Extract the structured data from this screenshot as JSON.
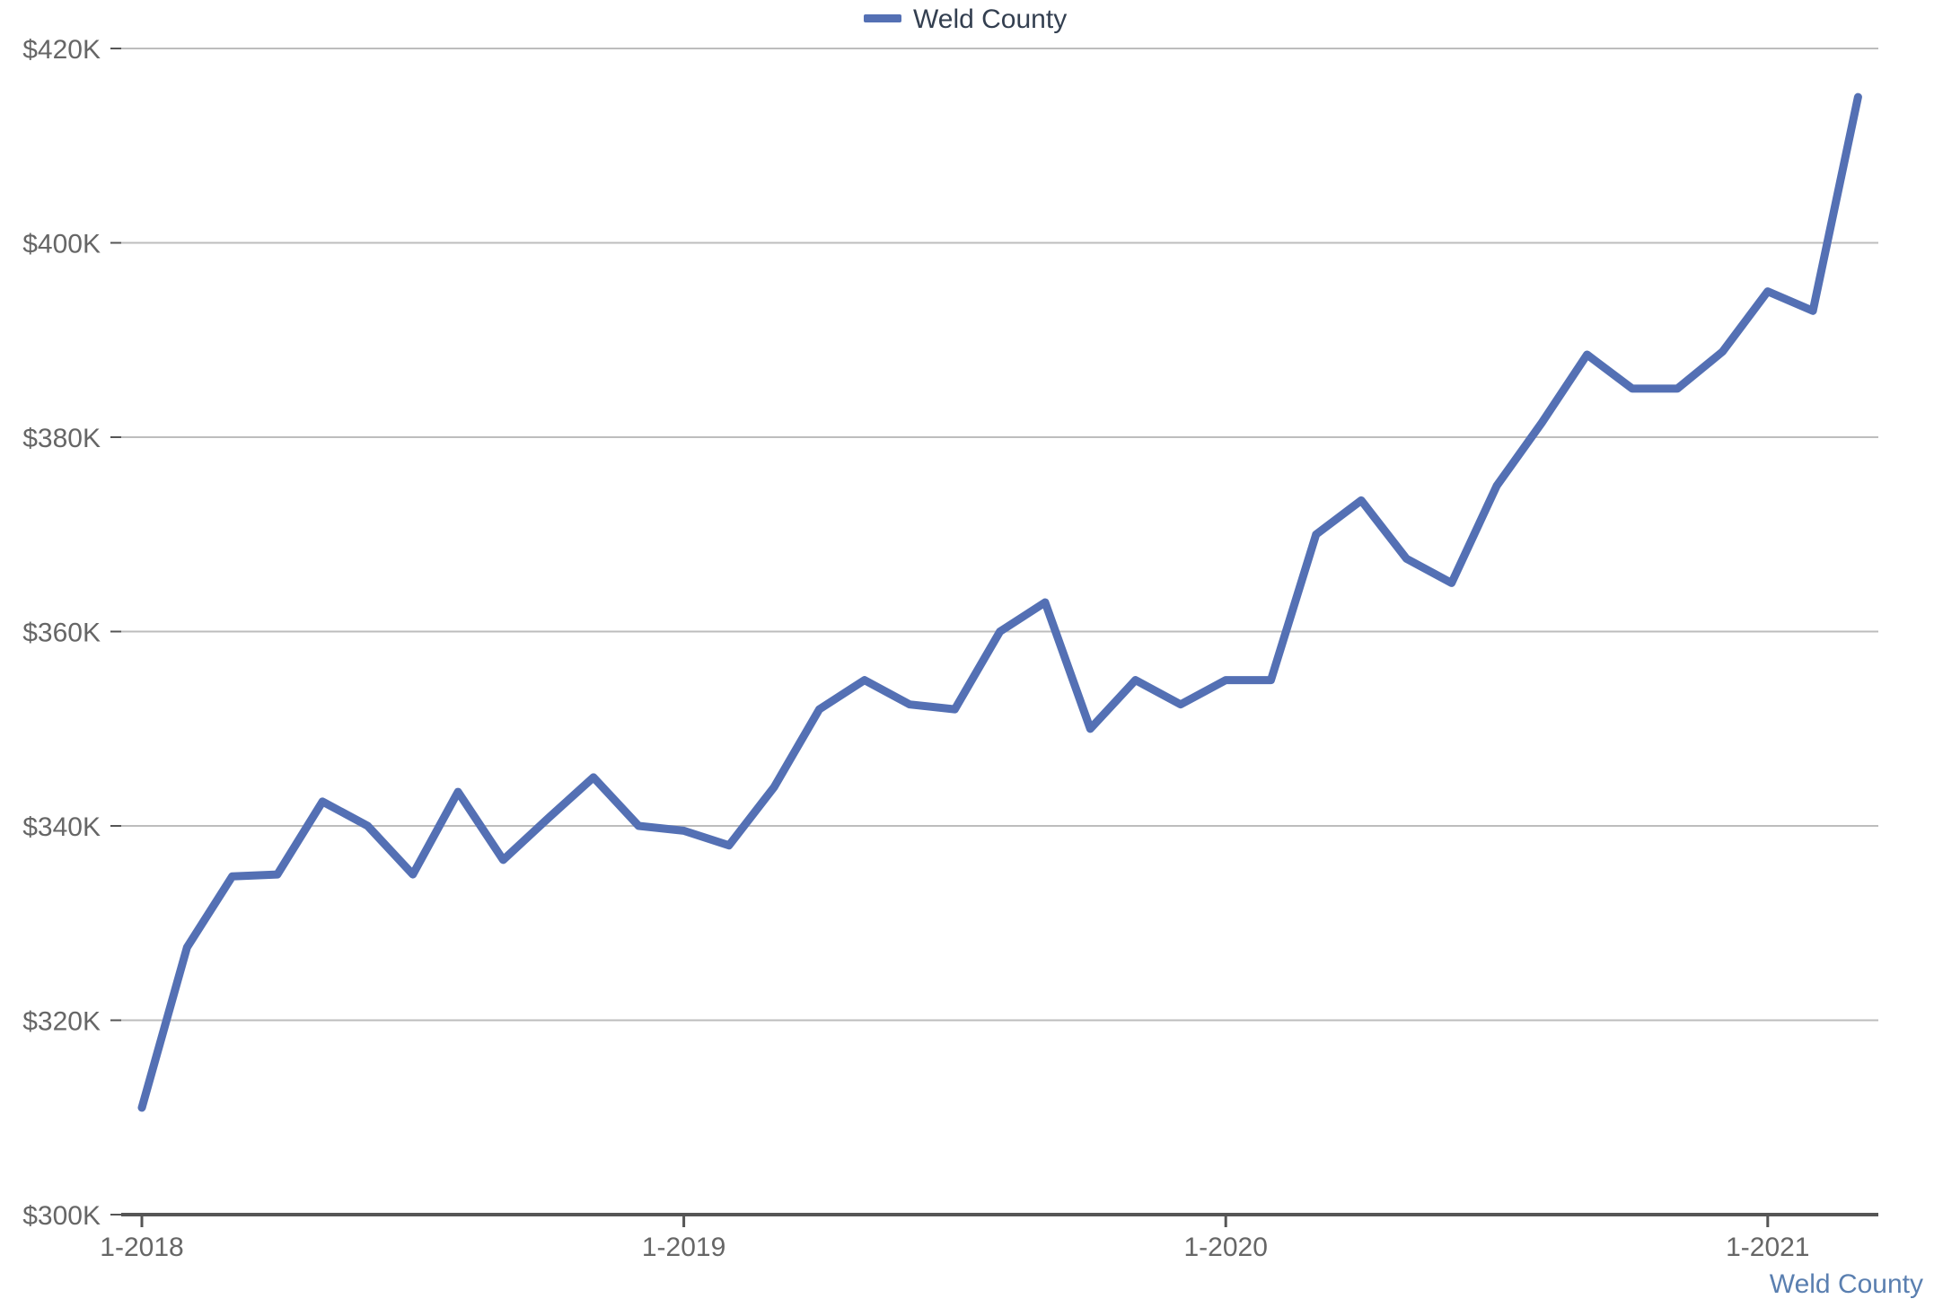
{
  "chart_data": {
    "type": "line",
    "title": "",
    "xlabel": "",
    "ylabel": "",
    "x": [
      "1-2018",
      "2-2018",
      "3-2018",
      "4-2018",
      "5-2018",
      "6-2018",
      "7-2018",
      "8-2018",
      "9-2018",
      "10-2018",
      "11-2018",
      "12-2018",
      "1-2019",
      "2-2019",
      "3-2019",
      "4-2019",
      "5-2019",
      "6-2019",
      "7-2019",
      "8-2019",
      "9-2019",
      "10-2019",
      "11-2019",
      "12-2019",
      "1-2020",
      "2-2020",
      "3-2020",
      "4-2020",
      "5-2020",
      "6-2020",
      "7-2020",
      "8-2020",
      "9-2020",
      "10-2020",
      "11-2020",
      "12-2020",
      "1-2021",
      "2-2021",
      "3-2021"
    ],
    "x_ticks": [
      "1-2018",
      "1-2019",
      "1-2020",
      "1-2021"
    ],
    "y_ticks": [
      "$300K",
      "$320K",
      "$340K",
      "$360K",
      "$380K",
      "$400K",
      "$420K"
    ],
    "ylim": [
      300000,
      420000
    ],
    "grid": true,
    "legend_position": "top-center",
    "series": [
      {
        "name": "Weld County",
        "color": "#5470b4",
        "values": [
          311000,
          327500,
          334800,
          335000,
          342500,
          340000,
          335000,
          343500,
          336500,
          340800,
          345000,
          340000,
          339500,
          338000,
          344000,
          352000,
          355000,
          352500,
          352000,
          360000,
          363000,
          350000,
          355000,
          352500,
          355000,
          355000,
          370000,
          373500,
          367500,
          365000,
          375000,
          381500,
          388500,
          385000,
          385000,
          388800,
          395000,
          393000,
          415000
        ]
      }
    ],
    "source_label": "Weld County"
  }
}
